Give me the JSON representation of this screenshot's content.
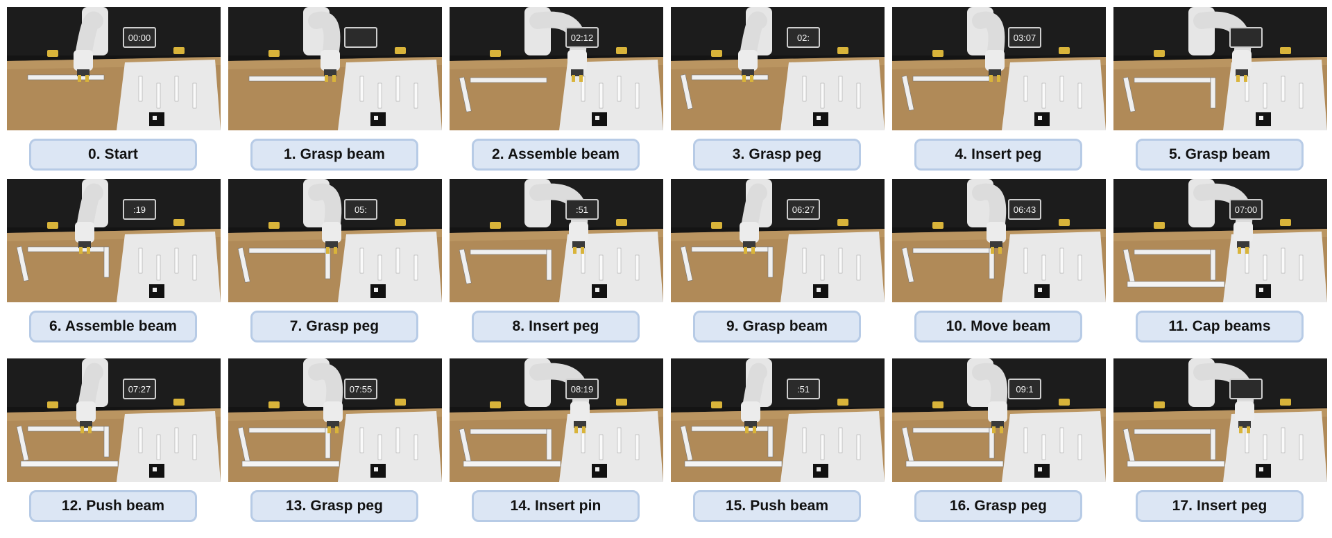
{
  "steps": [
    {
      "label": "0. Start",
      "timer": "00:00"
    },
    {
      "label": "1. Grasp beam",
      "timer": ""
    },
    {
      "label": "2. Assemble beam",
      "timer": "02:12"
    },
    {
      "label": "3. Grasp peg",
      "timer": "02:"
    },
    {
      "label": "4. Insert peg",
      "timer": "03:07"
    },
    {
      "label": "5. Grasp beam",
      "timer": ""
    },
    {
      "label": "6. Assemble beam",
      "timer": ":19"
    },
    {
      "label": "7. Grasp peg",
      "timer": "05:"
    },
    {
      "label": "8. Insert peg",
      "timer": ":51"
    },
    {
      "label": "9. Grasp beam",
      "timer": "06:27"
    },
    {
      "label": "10. Move beam",
      "timer": "06:43"
    },
    {
      "label": "11. Cap beams",
      "timer": "07:00"
    },
    {
      "label": "12. Push beam",
      "timer": "07:27"
    },
    {
      "label": "13. Grasp peg",
      "timer": "07:55"
    },
    {
      "label": "14. Insert pin",
      "timer": "08:19"
    },
    {
      "label": "15. Push beam",
      "timer": ":51"
    },
    {
      "label": "16. Grasp peg",
      "timer": "09:1"
    },
    {
      "label": "17. Insert peg",
      "timer": ""
    }
  ],
  "colors": {
    "label_fill": "#dce6f4",
    "label_border": "#b7cbe6",
    "table": "#b08a58",
    "backdrop": "#141414"
  }
}
